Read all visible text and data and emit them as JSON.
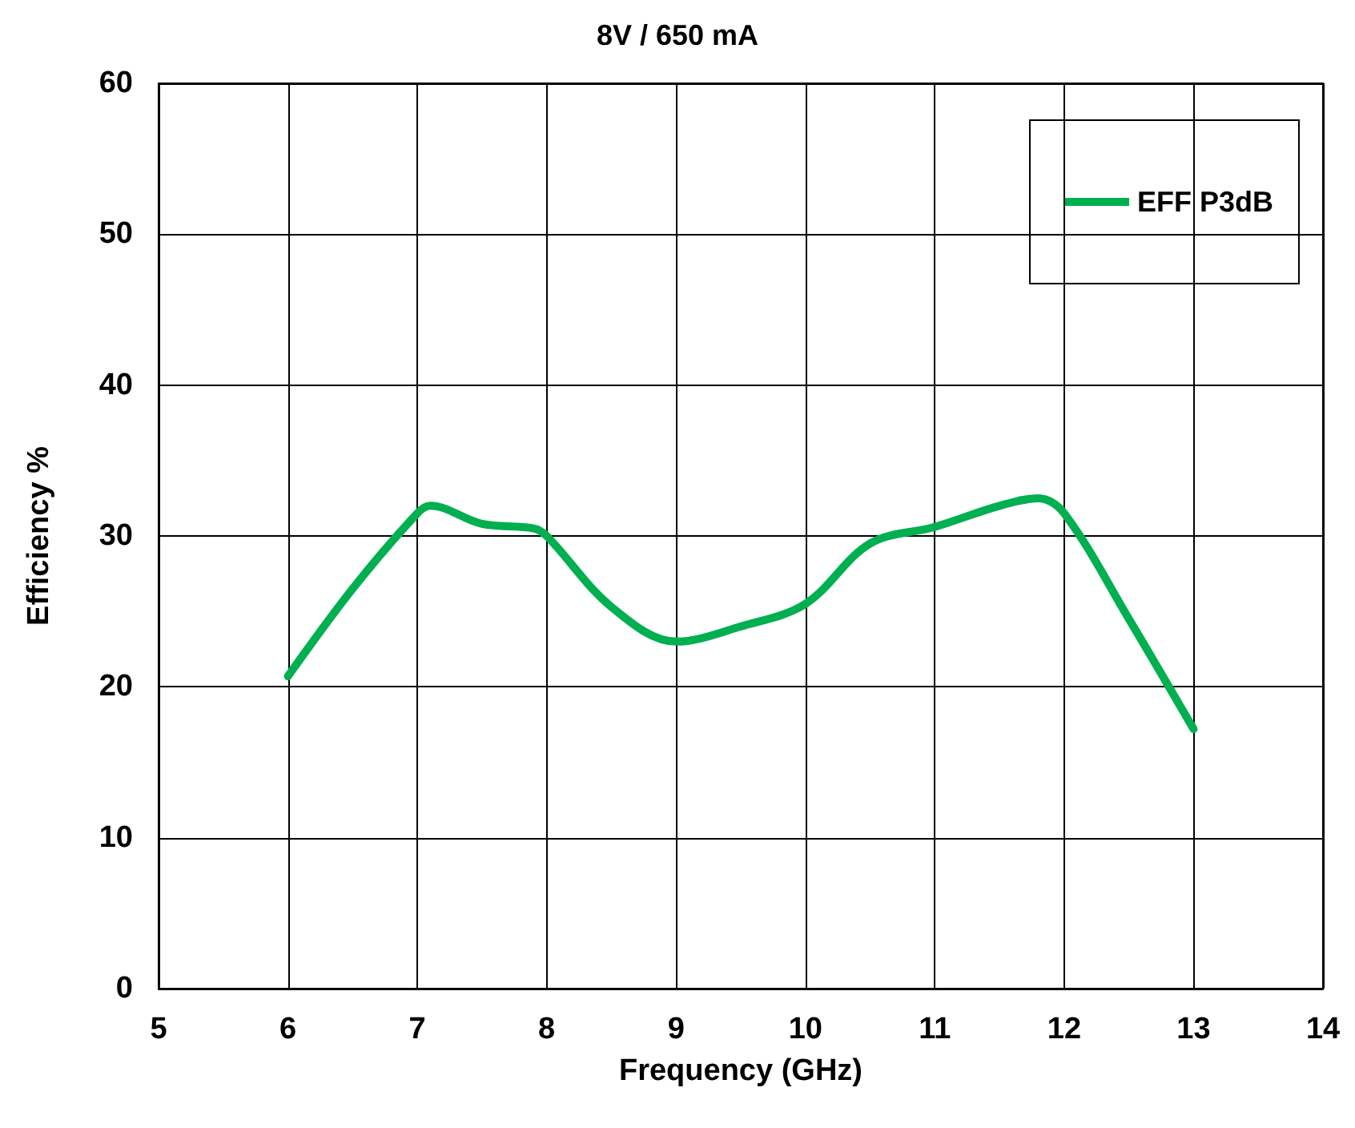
{
  "chart_data": {
    "type": "line",
    "title": "8V / 650 mA",
    "xlabel": "Frequency (GHz)",
    "ylabel": "Efficiency %",
    "xlim": [
      5,
      14
    ],
    "xticks": [
      5,
      6,
      7,
      8,
      9,
      10,
      11,
      12,
      13,
      14
    ],
    "ylim": [
      0,
      60
    ],
    "yticks": [
      0,
      10,
      20,
      30,
      40,
      50,
      60
    ],
    "grid": true,
    "legend": "top right",
    "marker": "none",
    "line_style": "solid",
    "series": [
      {
        "name": "EFF P3dB",
        "color": "#00b050",
        "x": [
          6,
          6.5,
          7,
          7.1,
          7.5,
          7.9,
          8,
          8.5,
          9,
          9.5,
          10,
          10.5,
          11,
          11.5,
          11.8,
          12,
          12.5,
          13
        ],
        "values": [
          20.7,
          26.5,
          31.5,
          32,
          30.8,
          30.5,
          30,
          25.3,
          23,
          24,
          25.5,
          29.5,
          30.6,
          32,
          32.5,
          31.5,
          24.5,
          17.2
        ]
      }
    ]
  }
}
